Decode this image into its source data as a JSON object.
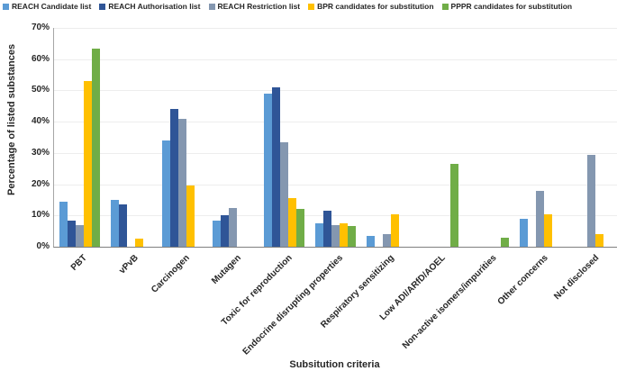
{
  "chart_data": {
    "type": "bar",
    "title": "",
    "xlabel": "Subsitution criteria",
    "ylabel": "Percentage of listed substances",
    "ylim": [
      0,
      70
    ],
    "ytick_step": 10,
    "ytick_suffix": "%",
    "grid": true,
    "legend_position": "top",
    "categories": [
      "PBT",
      "vPvB",
      "Carcinogen",
      "Mutagen",
      "Toxic for reproduction",
      "Endocrine disrupting properties",
      "Respiratory sensitizing",
      "Low ADI/ARfD/AOEL",
      "Non-active isomers/impurities",
      "Other concerns",
      "Not disclosed"
    ],
    "series": [
      {
        "name": "REACH Candidate list",
        "color": "#5B9BD5",
        "values": [
          14.5,
          15,
          34,
          8.5,
          49,
          7.5,
          3.5,
          0,
          0,
          9,
          0
        ]
      },
      {
        "name": "REACH Authorisation list",
        "color": "#2F5597",
        "values": [
          8.5,
          13.5,
          44,
          10,
          51,
          11.5,
          0,
          0,
          0,
          0,
          0
        ]
      },
      {
        "name": "REACH Restriction list",
        "color": "#8497B0",
        "values": [
          7,
          0,
          41,
          12.5,
          33.5,
          7,
          4,
          0,
          0,
          18,
          29.5
        ]
      },
      {
        "name": "BPR candidates for substitution",
        "color": "#FFC000",
        "values": [
          53,
          2.5,
          19.5,
          0,
          15.5,
          7.5,
          10.5,
          0,
          0,
          10.5,
          4
        ]
      },
      {
        "name": "PPPR candidates for substitution",
        "color": "#70AD47",
        "values": [
          63.5,
          0,
          0,
          0,
          12,
          6.5,
          0,
          26.5,
          3,
          0,
          0
        ]
      }
    ]
  }
}
